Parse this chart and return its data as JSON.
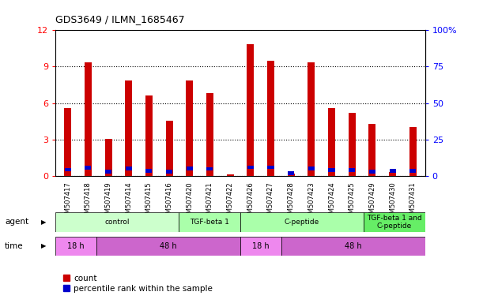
{
  "title": "GDS3649 / ILMN_1685467",
  "samples": [
    "GSM507417",
    "GSM507418",
    "GSM507419",
    "GSM507414",
    "GSM507415",
    "GSM507416",
    "GSM507420",
    "GSM507421",
    "GSM507422",
    "GSM507426",
    "GSM507427",
    "GSM507428",
    "GSM507423",
    "GSM507424",
    "GSM507425",
    "GSM507429",
    "GSM507430",
    "GSM507431"
  ],
  "count_values": [
    5.55,
    9.35,
    3.05,
    7.85,
    6.65,
    4.55,
    7.85,
    6.85,
    0.12,
    10.85,
    9.5,
    0.18,
    9.35,
    5.55,
    5.2,
    4.25,
    0.28,
    4.05
  ],
  "percentile_values": [
    4.2,
    5.4,
    2.8,
    5.1,
    3.4,
    2.8,
    4.9,
    4.7,
    0.0,
    5.9,
    5.85,
    1.6,
    5.1,
    3.8,
    3.8,
    2.9,
    3.25,
    3.3
  ],
  "count_color": "#cc0000",
  "percentile_color": "#0000cc",
  "ylim_left": [
    0,
    12
  ],
  "ylim_right": [
    0,
    100
  ],
  "yticks_left": [
    0,
    3,
    6,
    9,
    12
  ],
  "yticks_right": [
    0,
    25,
    50,
    75,
    100
  ],
  "ytick_right_labels": [
    "0",
    "25",
    "50",
    "75",
    "100%"
  ],
  "agent_groups": [
    {
      "label": "control",
      "start": 0,
      "end": 6,
      "color": "#ccffcc"
    },
    {
      "label": "TGF-beta 1",
      "start": 6,
      "end": 9,
      "color": "#aaffaa"
    },
    {
      "label": "C-peptide",
      "start": 9,
      "end": 15,
      "color": "#aaffaa"
    },
    {
      "label": "TGF-beta 1 and\nC-peptide",
      "start": 15,
      "end": 18,
      "color": "#66ee66"
    }
  ],
  "time_groups": [
    {
      "label": "18 h",
      "start": 0,
      "end": 2,
      "color": "#ee88ee"
    },
    {
      "label": "48 h",
      "start": 2,
      "end": 9,
      "color": "#cc66cc"
    },
    {
      "label": "18 h",
      "start": 9,
      "end": 11,
      "color": "#ee88ee"
    },
    {
      "label": "48 h",
      "start": 11,
      "end": 18,
      "color": "#cc66cc"
    }
  ],
  "bar_width": 0.35,
  "blue_bar_height": 0.3,
  "background_color": "#ffffff",
  "grid_color": "#000000",
  "title_color": "#000000",
  "legend_count_label": "count",
  "legend_pct_label": "percentile rank within the sample"
}
